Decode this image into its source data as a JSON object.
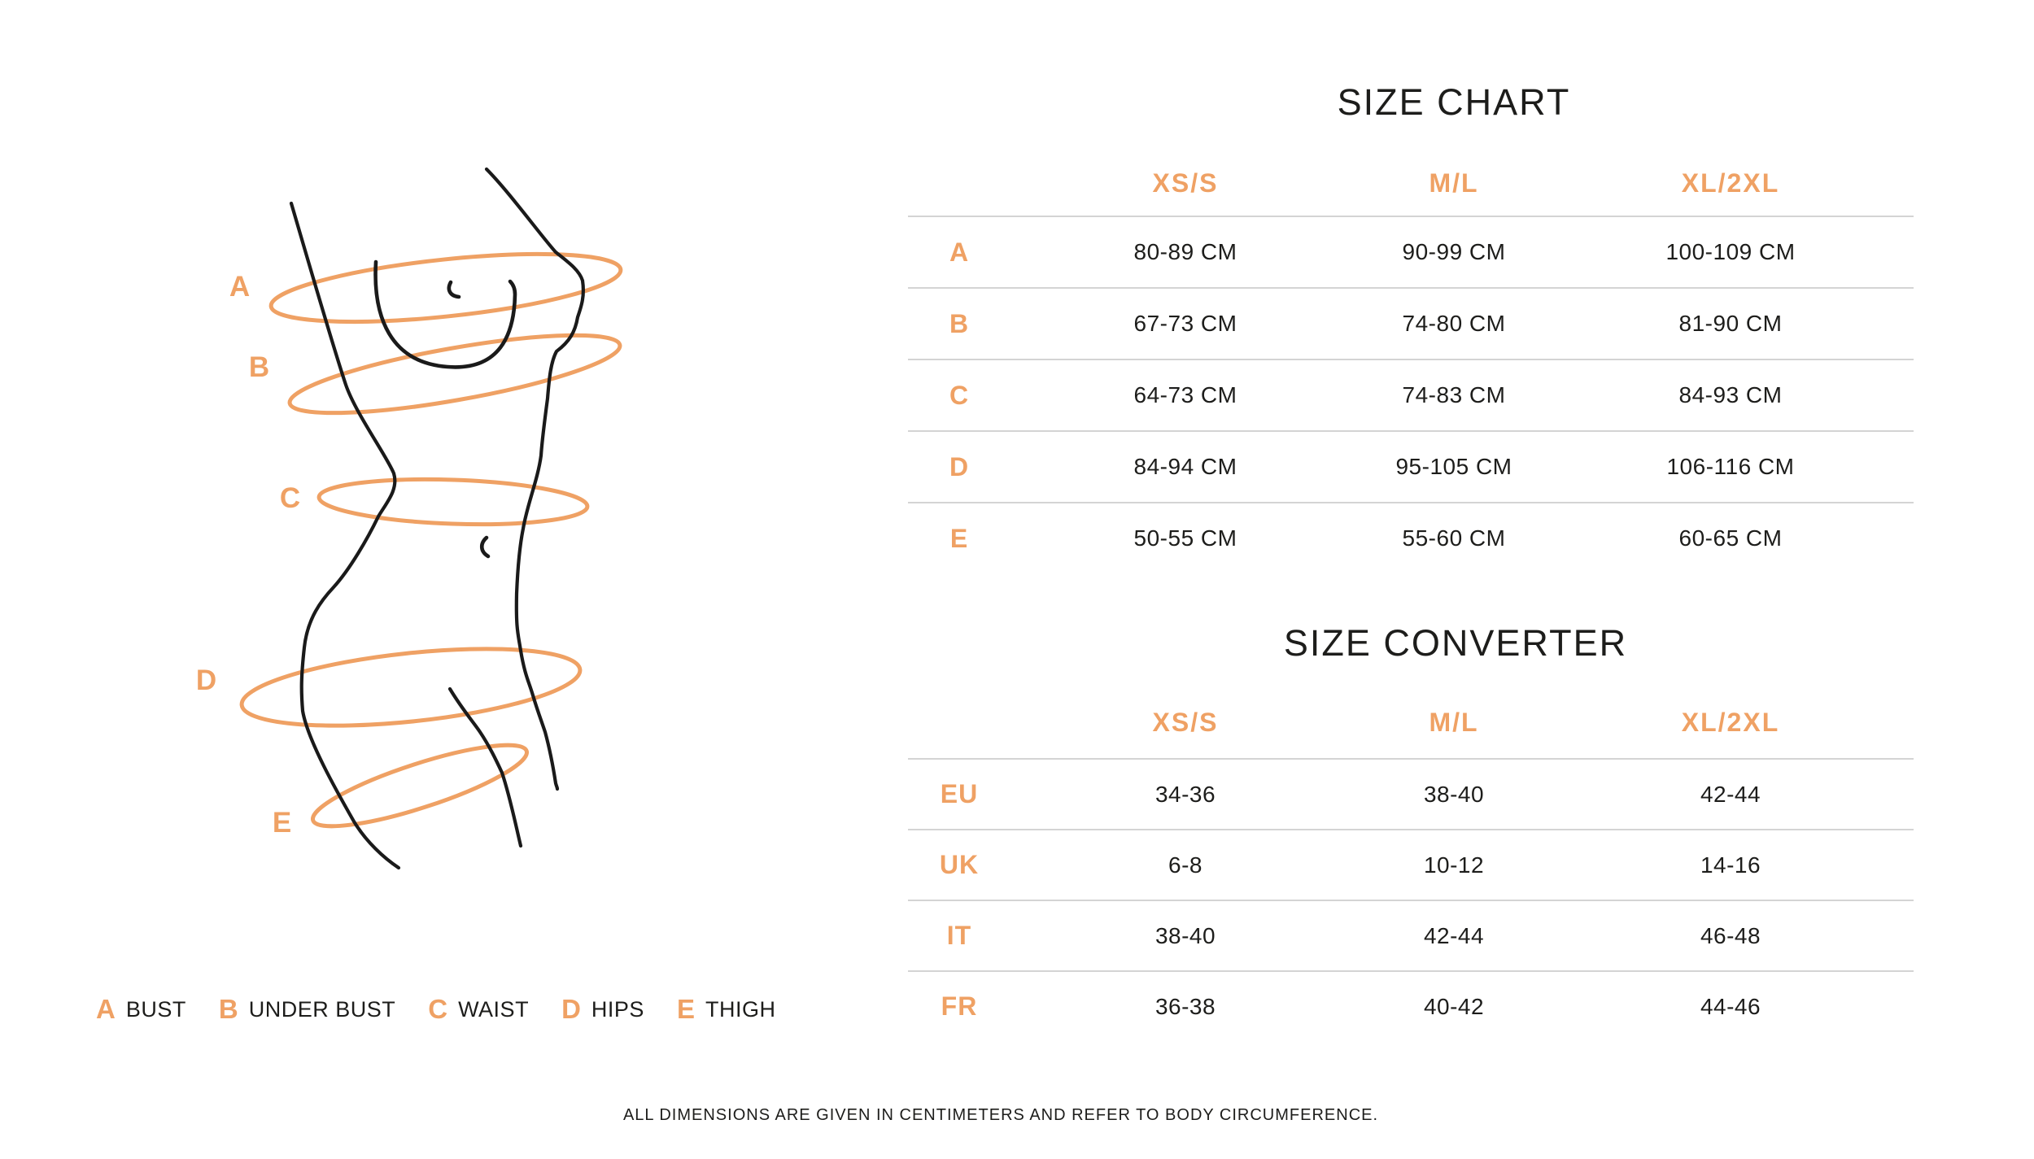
{
  "colors": {
    "accent": "#efa164",
    "text": "#1d1d1b",
    "divider": "#d4d4d4",
    "figure_line": "#1a1a1a",
    "background": "#ffffff"
  },
  "figure": {
    "markers": [
      "A",
      "B",
      "C",
      "D",
      "E"
    ]
  },
  "legend": {
    "items": [
      {
        "letter": "A",
        "label": "BUST"
      },
      {
        "letter": "B",
        "label": "UNDER BUST"
      },
      {
        "letter": "C",
        "label": "WAIST"
      },
      {
        "letter": "D",
        "label": "HIPS"
      },
      {
        "letter": "E",
        "label": "THIGH"
      }
    ]
  },
  "size_chart": {
    "title": "SIZE CHART",
    "columns": [
      "XS/S",
      "M/L",
      "XL/2XL"
    ],
    "rows": [
      {
        "label": "A",
        "values": [
          "80-89 CM",
          "90-99 CM",
          "100-109 CM"
        ]
      },
      {
        "label": "B",
        "values": [
          "67-73 CM",
          "74-80 CM",
          "81-90 CM"
        ]
      },
      {
        "label": "C",
        "values": [
          "64-73 CM",
          "74-83 CM",
          "84-93 CM"
        ]
      },
      {
        "label": "D",
        "values": [
          "84-94 CM",
          "95-105 CM",
          "106-116 CM"
        ]
      },
      {
        "label": "E",
        "values": [
          "50-55 CM",
          "55-60 CM",
          "60-65 CM"
        ]
      }
    ]
  },
  "size_converter": {
    "title": "SIZE CONVERTER",
    "columns": [
      "XS/S",
      "M/L",
      "XL/2XL"
    ],
    "rows": [
      {
        "label": "EU",
        "values": [
          "34-36",
          "38-40",
          "42-44"
        ]
      },
      {
        "label": "UK",
        "values": [
          "6-8",
          "10-12",
          "14-16"
        ]
      },
      {
        "label": "IT",
        "values": [
          "38-40",
          "42-44",
          "46-48"
        ]
      },
      {
        "label": "FR",
        "values": [
          "36-38",
          "40-42",
          "44-46"
        ]
      }
    ]
  },
  "footer": "ALL DIMENSIONS ARE GIVEN IN CENTIMETERS AND REFER TO BODY CIRCUMFERENCE."
}
